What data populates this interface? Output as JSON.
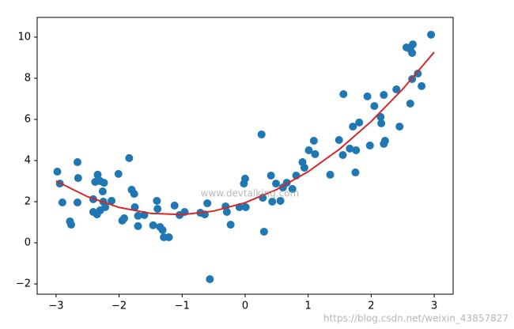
{
  "chart_data": {
    "type": "scatter",
    "xlim": [
      -3.3,
      3.3
    ],
    "ylim": [
      -2.5,
      10.96
    ],
    "xticks": [
      {
        "value": -3,
        "label": "−3"
      },
      {
        "value": -2,
        "label": "−2"
      },
      {
        "value": -1,
        "label": "−1"
      },
      0,
      1,
      2,
      3
    ],
    "yticks": [
      {
        "value": -2,
        "label": "−2"
      },
      0,
      2,
      4,
      6,
      8,
      10
    ],
    "grid": false,
    "watermarks": [
      "www.devtalking.com",
      "https://blog.csdn.net/weixin_43857827"
    ],
    "series": [
      {
        "type": "scatter",
        "color": "#1f77b4",
        "x": [
          -2.98,
          -2.94,
          -2.9,
          -2.78,
          -2.76,
          -2.66,
          -2.65,
          -2.66,
          -2.41,
          -2.38,
          -2.34,
          -2.3,
          -2.24,
          -2.26,
          -2.41,
          -2.35,
          -2.3,
          -2.25,
          -2.22,
          -2.12,
          -2.01,
          -1.95,
          -1.92,
          -1.84,
          -1.8,
          -1.76,
          -1.75,
          -1.7,
          -1.7,
          -1.6,
          -1.46,
          -1.4,
          -1.39,
          -1.35,
          -1.31,
          -1.29,
          -1.21,
          -1.12,
          -1.04,
          -0.96,
          -0.71,
          -0.64,
          -0.6,
          -0.56,
          -0.31,
          -0.29,
          -0.23,
          -0.09,
          -0.02,
          0,
          0.01,
          0.26,
          0.3,
          0.28,
          0.43,
          0.41,
          0.49,
          0.56,
          0.6,
          0.66,
          0.75,
          0.81,
          0.91,
          0.94,
          1.01,
          1.09,
          1.11,
          1.35,
          1.49,
          1.55,
          1.56,
          1.66,
          1.71,
          1.75,
          1.76,
          1.81,
          1.94,
          1.98,
          2.05,
          2.15,
          2.16,
          2.2,
          2.22,
          2.2,
          2.4,
          2.45,
          2.56,
          2.62,
          2.62,
          2.65,
          2.65,
          2.66,
          2.74,
          2.8,
          2.95
        ],
        "values": [
          3.46,
          2.88,
          1.96,
          1.04,
          0.88,
          3.92,
          3.15,
          1.96,
          2.12,
          2.96,
          3.31,
          3.0,
          2.92,
          2.5,
          1.5,
          1.38,
          1.58,
          2.0,
          1.73,
          2.04,
          3.35,
          1.08,
          1.19,
          4.12,
          2.58,
          2.38,
          1.73,
          0.81,
          1.31,
          1.35,
          0.85,
          2.04,
          1.65,
          0.77,
          0.62,
          0.27,
          0.27,
          1.81,
          1.35,
          1.5,
          1.46,
          1.38,
          1.92,
          -1.77,
          1.77,
          1.5,
          0.88,
          1.73,
          2.88,
          3.12,
          1.73,
          5.27,
          0.54,
          2.19,
          2.0,
          3.27,
          2.88,
          2.04,
          2.69,
          2.92,
          2.62,
          3.27,
          3.92,
          3.65,
          4.5,
          4.96,
          4.31,
          3.31,
          5.0,
          4.27,
          7.23,
          4.58,
          5.65,
          3.42,
          4.5,
          5.85,
          7.12,
          4.73,
          6.65,
          6.12,
          5.81,
          4.81,
          4.96,
          7.19,
          7.46,
          5.65,
          9.5,
          6.77,
          9.42,
          9.23,
          7.96,
          9.65,
          8.23,
          7.62,
          10.12
        ]
      },
      {
        "type": "line",
        "color": "#d62728",
        "x": [
          -3,
          -2.5,
          -2,
          -1.5,
          -1,
          -0.5,
          0,
          0.5,
          1,
          1.5,
          2,
          2.5,
          3
        ],
        "values": [
          3.0,
          2.24,
          1.72,
          1.43,
          1.37,
          1.54,
          1.95,
          2.59,
          3.46,
          4.56,
          5.9,
          7.47,
          9.27
        ]
      }
    ]
  }
}
